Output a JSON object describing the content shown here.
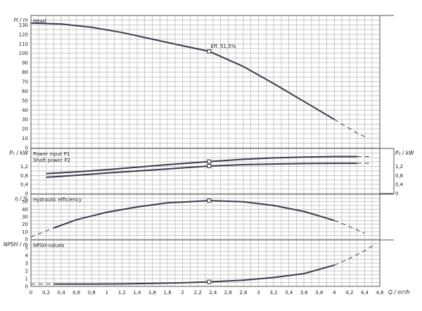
{
  "chart_data": {
    "type": "line",
    "x_label": "Q / m³/h",
    "x_range": [
      0,
      4.6
    ],
    "x_ticks": [
      "0",
      "0,2",
      "0,4",
      "0,6",
      "0,8",
      "1",
      "1,2",
      "1,4",
      "1,6",
      "1,8",
      "2",
      "2,2",
      "2,4",
      "2,6",
      "2,8",
      "3",
      "3,2",
      "3,4",
      "3,6",
      "3,8",
      "4",
      "4,2",
      "4,4",
      "4,6"
    ],
    "duty_point_q": 2.35,
    "panels": [
      {
        "id": "head",
        "y_label": "H / m",
        "y_range": [
          0,
          140
        ],
        "y_ticks": [
          "0",
          "10",
          "20",
          "30",
          "40",
          "50",
          "60",
          "70",
          "80",
          "90",
          "100",
          "110",
          "120",
          "130"
        ],
        "series_labels": [
          "Head"
        ],
        "annotation": "Eff.  51,5%",
        "curves": [
          {
            "x": [
              0,
              0.4,
              0.8,
              1.2,
              1.6,
              2.0,
              2.35,
              2.8,
              3.2,
              3.6,
              4.0
            ],
            "y": [
              132,
              131,
              127.5,
              122,
              115,
              108,
              102,
              86,
              68,
              49,
              30
            ]
          }
        ],
        "extrap": [
          {
            "x": [
              4.0,
              4.1,
              4.2,
              4.3,
              4.45
            ],
            "y": [
              30,
              25,
              20.5,
              15.5,
              10
            ]
          }
        ],
        "marker_y": 102
      },
      {
        "id": "power",
        "y_label": "P₁ / kW",
        "y_label_right": "P₂ / kW",
        "y_range": [
          0,
          2
        ],
        "y_ticks": [
          "0",
          "0,4",
          "0,8",
          "1,2"
        ],
        "y_ticks_right": [
          "0",
          "0,4",
          "0,8",
          "1,2"
        ],
        "series_labels": [
          "Power input P1",
          "Shaft power P2"
        ],
        "curves": [
          {
            "x": [
              0.2,
              0.6,
              1.0,
              1.4,
              1.8,
              2.35,
              2.8,
              3.2,
              3.6,
              4.0,
              4.3
            ],
            "y": [
              0.88,
              0.96,
              1.06,
              1.17,
              1.28,
              1.42,
              1.52,
              1.58,
              1.62,
              1.64,
              1.64
            ]
          },
          {
            "x": [
              0.2,
              0.6,
              1.0,
              1.4,
              1.8,
              2.35,
              2.8,
              3.2,
              3.6,
              4.0,
              4.3
            ],
            "y": [
              0.72,
              0.81,
              0.91,
              1.0,
              1.09,
              1.22,
              1.28,
              1.31,
              1.33,
              1.34,
              1.34
            ]
          }
        ],
        "extrap": [
          {
            "x": [
              4.3,
              4.5
            ],
            "y": [
              1.64,
              1.64
            ]
          },
          {
            "x": [
              4.3,
              4.5
            ],
            "y": [
              1.34,
              1.34
            ]
          }
        ],
        "marker_y": [
          1.42,
          1.22
        ]
      },
      {
        "id": "eff",
        "y_label": "η / %",
        "y_range": [
          0,
          60
        ],
        "y_ticks": [
          "0",
          "10",
          "20",
          "30",
          "40",
          "50"
        ],
        "series_labels": [
          "Hydraulic efficiency"
        ],
        "curves": [
          {
            "x": [
              0.3,
              0.6,
              1.0,
              1.4,
              1.8,
              2.35,
              2.8,
              3.2,
              3.6,
              4.0
            ],
            "y": [
              15,
              26,
              36,
              43,
              48.5,
              51.5,
              50,
              45,
              37,
              25
            ]
          }
        ],
        "extrap": [
          {
            "x": [
              0.0,
              0.15,
              0.3
            ],
            "y": [
              3,
              9,
              15
            ]
          },
          {
            "x": [
              4.0,
              4.2,
              4.4
            ],
            "y": [
              25,
              17,
              8
            ]
          }
        ],
        "marker_y": 51.5
      },
      {
        "id": "npsh",
        "y_label": "NPSH / m",
        "y_range": [
          0,
          6
        ],
        "y_ticks": [
          "0",
          "1",
          "2",
          "3",
          "4",
          "5"
        ],
        "series_labels": [
          "NPSH-values"
        ],
        "curves": [
          {
            "x": [
              0.3,
              0.8,
              1.2,
              1.6,
              2.0,
              2.35,
              2.8,
              3.2,
              3.6,
              4.0
            ],
            "y": [
              0.3,
              0.3,
              0.32,
              0.38,
              0.46,
              0.58,
              0.8,
              1.15,
              1.65,
              2.75
            ]
          }
        ],
        "extrap": [
          {
            "x": [
              0.0,
              0.3
            ],
            "y": [
              0.3,
              0.3
            ]
          },
          {
            "x": [
              4.0,
              4.2,
              4.4,
              4.55
            ],
            "y": [
              2.75,
              3.6,
              4.6,
              5.5
            ]
          }
        ],
        "marker_y": 0.58
      }
    ]
  }
}
